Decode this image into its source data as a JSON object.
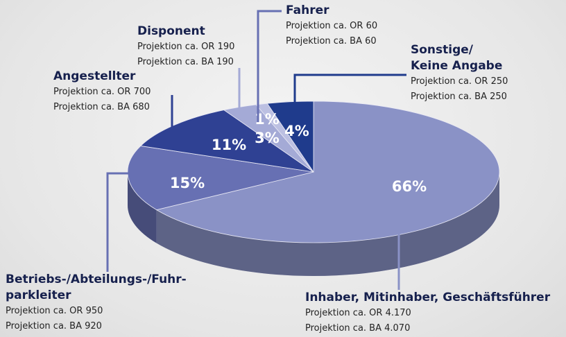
{
  "chart_data": {
    "type": "pie",
    "categories": [
      "Inhaber, Mitinhaber, Geschäftsführer",
      "Betriebs-/Abteilungs-/Fuhr-\nparkleiter",
      "Angestellter",
      "Disponent",
      "Fahrer",
      "Sonstige/\nKeine Angabe"
    ],
    "values": [
      66,
      15,
      11,
      3,
      1,
      4
    ],
    "value_labels": [
      "66%",
      "15%",
      "11%",
      "3%",
      "1%",
      "4%"
    ],
    "colors": [
      "#8a92c6",
      "#6770b3",
      "#2f4193",
      "#a4aad6",
      "#bcc0e2",
      "#1f3b8c"
    ],
    "details": [
      [
        "Projektion ca. OR 4.170",
        "Projektion ca. BA 4.070"
      ],
      [
        "Projektion ca. OR 950",
        "Projektion ca. BA 920"
      ],
      [
        "Projektion ca. OR 700",
        "Projektion ca. BA 680"
      ],
      [
        "Projektion ca. OR 190",
        "Projektion ca. BA 190"
      ],
      [
        "Projektion ca. OR 60",
        "Projektion ca. BA 60"
      ],
      [
        "Projektion ca. OR 250",
        "Projektion ca. BA 250"
      ]
    ]
  }
}
